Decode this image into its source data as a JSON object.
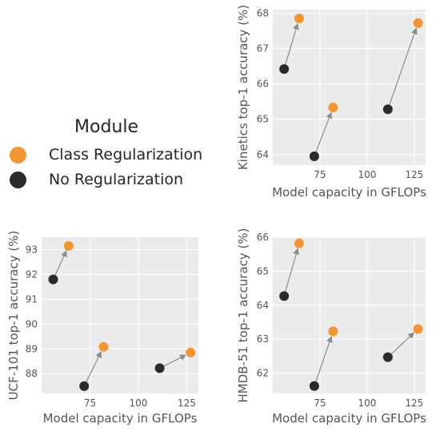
{
  "legend": {
    "title": "Module",
    "items": [
      {
        "label": "Class Regularization",
        "color": "#f39533"
      },
      {
        "label": "No Regularization",
        "color": "#2b2b2b"
      }
    ]
  },
  "colors": {
    "plot_background": "#ebebeb",
    "grid": "#ffffff",
    "arrow": "#8c8c8c",
    "class_regularization": "#f39533",
    "no_regularization": "#2b2b2b"
  },
  "chart_data": [
    {
      "type": "scatter",
      "title": "",
      "xlabel": "Model capacity in GFLOPs",
      "ylabel": "Kinetics top-1 accuracy (%)",
      "xlim": [
        50,
        131
      ],
      "ylim": [
        63.7,
        68.1
      ],
      "xticks": [
        75,
        100,
        125
      ],
      "yticks": [
        64,
        65,
        66,
        67,
        68
      ],
      "grid": true,
      "series": [
        {
          "name": "No Regularization",
          "points": [
            [
              56,
              66.42
            ],
            [
              72,
              63.95
            ],
            [
              111,
              65.28
            ]
          ]
        },
        {
          "name": "Class Regularization",
          "points": [
            [
              64,
              67.85
            ],
            [
              82,
              65.33
            ],
            [
              127,
              67.72
            ]
          ]
        }
      ],
      "arrows": [
        [
          [
            56,
            66.42
          ],
          [
            64,
            67.85
          ]
        ],
        [
          [
            72,
            63.95
          ],
          [
            82,
            65.33
          ]
        ],
        [
          [
            111,
            65.28
          ],
          [
            127,
            67.72
          ]
        ]
      ]
    },
    {
      "type": "scatter",
      "title": "",
      "xlabel": "Model capacity in GFLOPs",
      "ylabel": "UCF-101 top-1 accuracy (%)",
      "xlim": [
        50,
        131
      ],
      "ylim": [
        87.2,
        93.5
      ],
      "xticks": [
        75,
        100,
        125
      ],
      "yticks": [
        88,
        89,
        90,
        91,
        92,
        93
      ],
      "grid": true,
      "series": [
        {
          "name": "No Regularization",
          "points": [
            [
              56,
              91.8
            ],
            [
              72,
              87.5
            ],
            [
              111,
              88.22
            ]
          ]
        },
        {
          "name": "Class Regularization",
          "points": [
            [
              64,
              93.15
            ],
            [
              82,
              89.08
            ],
            [
              127,
              88.85
            ]
          ]
        }
      ],
      "arrows": [
        [
          [
            56,
            91.8
          ],
          [
            64,
            93.15
          ]
        ],
        [
          [
            72,
            87.5
          ],
          [
            82,
            89.08
          ]
        ],
        [
          [
            111,
            88.22
          ],
          [
            127,
            88.85
          ]
        ]
      ]
    },
    {
      "type": "scatter",
      "title": "",
      "xlabel": "Model capacity in GFLOPs",
      "ylabel": "HMDB-51 top-1 accuracy (%)",
      "xlim": [
        50,
        131
      ],
      "ylim": [
        61.4,
        66.0
      ],
      "xticks": [
        75,
        100,
        125
      ],
      "yticks": [
        62,
        63,
        64,
        65,
        66
      ],
      "grid": true,
      "series": [
        {
          "name": "No Regularization",
          "points": [
            [
              56,
              64.27
            ],
            [
              72,
              61.62
            ],
            [
              111,
              62.47
            ]
          ]
        },
        {
          "name": "Class Regularization",
          "points": [
            [
              64,
              65.82
            ],
            [
              82,
              63.23
            ],
            [
              127,
              63.3
            ]
          ]
        }
      ],
      "arrows": [
        [
          [
            56,
            64.27
          ],
          [
            64,
            65.82
          ]
        ],
        [
          [
            72,
            61.62
          ],
          [
            82,
            63.23
          ]
        ],
        [
          [
            111,
            62.47
          ],
          [
            127,
            63.3
          ]
        ]
      ]
    }
  ]
}
